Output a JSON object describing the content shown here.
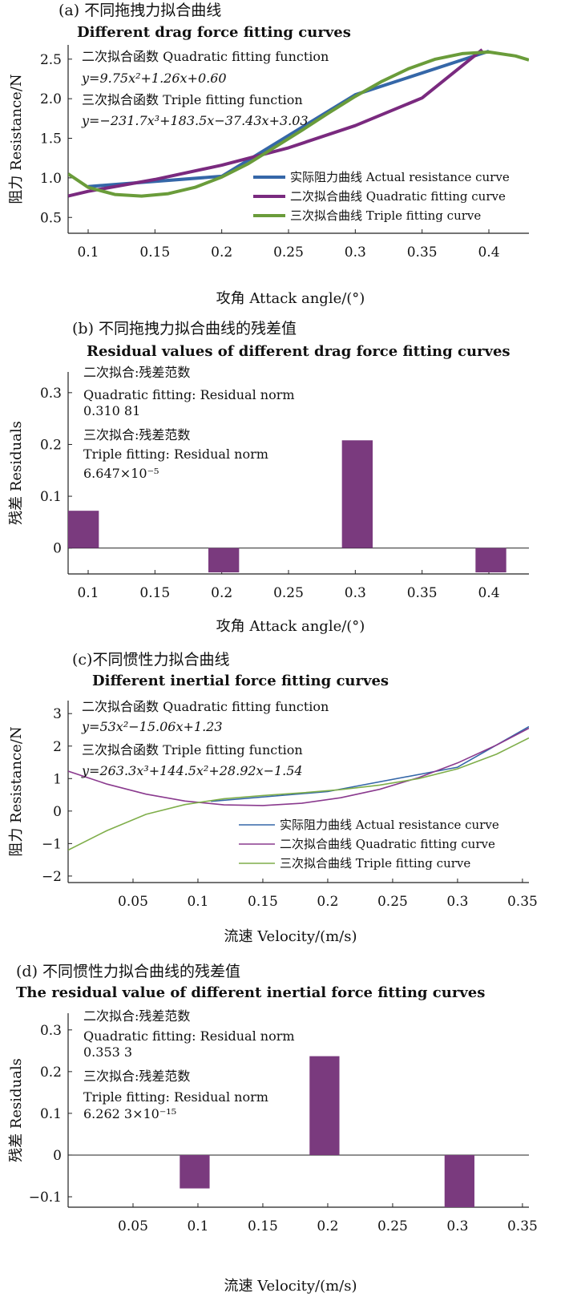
{
  "chart_data": [
    {
      "type": "line",
      "title": "(a) 不同拖拽力拟合曲线",
      "subtitle": "Different drag force fitting curves",
      "xlabel": "攻角 Attack angle/(°)",
      "ylabel": "阻力 Resistance/N",
      "xlim": [
        0.085,
        0.43
      ],
      "ylim": [
        0.3,
        2.68
      ],
      "xticks": [
        0.1,
        0.15,
        0.2,
        0.25,
        0.3,
        0.35,
        0.4
      ],
      "xtick_labels": [
        "0.1",
        "0.15",
        "0.2",
        "0.25",
        "0.3",
        "0.35",
        "0.4"
      ],
      "yticks": [
        0.5,
        1.0,
        1.5,
        2.0,
        2.5
      ],
      "ytick_labels": [
        "0.5",
        "1.0",
        "1.5",
        "2.0",
        "2.5"
      ],
      "annotations": [
        "二次拟合函数 Quadratic fitting function",
        "y=9.75x²+1.26x+0.60",
        "三次拟合函数 Triple fitting function",
        "y=−231.7x³+183.5x−37.43x+3.03"
      ],
      "legend": [
        "实际阻力曲线 Actual resistance curve",
        "二次拟合曲线 Quadratic fitting curve",
        "三次拟合曲线 Triple fitting curve"
      ],
      "legend_position": "right",
      "series": [
        {
          "name": "实际阻力曲线 Actual resistance curve",
          "color": "#3567a8",
          "width": 4,
          "x": [
            0.1,
            0.2,
            0.3,
            0.4
          ],
          "y": [
            0.89,
            1.02,
            2.05,
            2.6
          ]
        },
        {
          "name": "二次拟合曲线 Quadratic fitting curve",
          "color": "#7a2a7f",
          "width": 4,
          "x": [
            0.085,
            0.1,
            0.15,
            0.2,
            0.25,
            0.3,
            0.35,
            0.395
          ],
          "y": [
            0.77,
            0.83,
            0.98,
            1.16,
            1.38,
            1.66,
            2.01,
            2.62
          ]
        },
        {
          "name": "三次拟合曲线 Triple fitting curve",
          "color": "#6a9c3a",
          "width": 4,
          "x": [
            0.085,
            0.1,
            0.12,
            0.14,
            0.16,
            0.18,
            0.2,
            0.22,
            0.24,
            0.26,
            0.28,
            0.3,
            0.32,
            0.34,
            0.36,
            0.38,
            0.4,
            0.42,
            0.43
          ],
          "y": [
            1.05,
            0.88,
            0.79,
            0.77,
            0.8,
            0.88,
            1.01,
            1.18,
            1.39,
            1.6,
            1.82,
            2.03,
            2.22,
            2.38,
            2.5,
            2.57,
            2.59,
            2.54,
            2.49
          ]
        }
      ]
    },
    {
      "type": "bar",
      "title": "(b) 不同拖拽力拟合曲线的残差值",
      "subtitle": "Residual values of different drag force fitting curves",
      "xlabel": "攻角 Attack angle/(°)",
      "ylabel": "残差 Residuals",
      "xlim": [
        0.085,
        0.43
      ],
      "ylim": [
        -0.05,
        0.34
      ],
      "xticks": [
        0.1,
        0.15,
        0.2,
        0.25,
        0.3,
        0.35,
        0.4
      ],
      "xtick_labels": [
        "0.1",
        "0.15",
        "0.2",
        "0.25",
        "0.3",
        "0.35",
        "0.4"
      ],
      "yticks": [
        0,
        0.1,
        0.2,
        0.3
      ],
      "ytick_labels": [
        "0",
        "0.1",
        "0.2",
        "0.3"
      ],
      "annotations": [
        "二次拟合:残差范数",
        "Quadratic fitting: Residual norm",
        "0.310 81",
        "三次拟合:残差范数",
        "Triple fitting: Residual norm",
        "6.647×10⁻⁵"
      ],
      "bar_color": "#7a3a7e",
      "bar_width": 0.023,
      "x": [
        0.085,
        0.19,
        0.29,
        0.39
      ],
      "values": [
        0.072,
        -0.047,
        0.208,
        -0.047
      ]
    },
    {
      "type": "line",
      "title": "(c)不同惯性力拟合曲线",
      "subtitle": "Different inertial force fitting curves",
      "xlabel": "流速 Velocity/(m/s)",
      "ylabel": "阻力 Resistance/N",
      "xlim": [
        0.0,
        0.355
      ],
      "ylim": [
        -2.2,
        3.4
      ],
      "xticks": [
        0.05,
        0.1,
        0.15,
        0.2,
        0.25,
        0.3,
        0.35
      ],
      "xtick_labels": [
        "0.05",
        "0.1",
        "0.15",
        "0.2",
        "0.25",
        "0.3",
        "0.35"
      ],
      "yticks": [
        -2,
        -1,
        0,
        1,
        2,
        3
      ],
      "ytick_labels": [
        "−2",
        "−1",
        "0",
        "1",
        "2",
        "3"
      ],
      "annotations": [
        "二次拟合函数 Quadratic fitting function",
        "y=53x²−15.06x+1.23",
        "三次拟合函数 Triple fitting function",
        "y=263.3x³+144.5x²+28.92x−1.54"
      ],
      "legend": [
        "实际阻力曲线 Actual resistance curve",
        "二次拟合曲线 Quadratic fitting curve",
        "三次拟合曲线 Triple fitting curve"
      ],
      "legend_position": "bottom-right",
      "series": [
        {
          "name": "实际阻力曲线 Actual resistance curve",
          "color": "#3567a8",
          "width": 1.6,
          "x": [
            0.11,
            0.2,
            0.3,
            0.355
          ],
          "y": [
            0.3,
            0.6,
            1.35,
            2.6
          ]
        },
        {
          "name": "二次拟合曲线 Quadratic fitting curve",
          "color": "#8a3a8e",
          "width": 1.6,
          "x": [
            0.0,
            0.03,
            0.06,
            0.09,
            0.12,
            0.15,
            0.18,
            0.21,
            0.24,
            0.27,
            0.3,
            0.33,
            0.355
          ],
          "y": [
            1.23,
            0.83,
            0.52,
            0.31,
            0.19,
            0.17,
            0.24,
            0.41,
            0.67,
            1.03,
            1.48,
            2.03,
            2.55
          ]
        },
        {
          "name": "三次拟合曲线 Triple fitting curve",
          "color": "#7fae4a",
          "width": 1.6,
          "x": [
            0.0,
            0.03,
            0.06,
            0.09,
            0.12,
            0.15,
            0.18,
            0.21,
            0.24,
            0.27,
            0.3,
            0.33,
            0.355
          ],
          "y": [
            -1.2,
            -0.6,
            -0.1,
            0.2,
            0.38,
            0.48,
            0.56,
            0.66,
            0.8,
            1.0,
            1.3,
            1.75,
            2.25
          ]
        }
      ]
    },
    {
      "type": "bar",
      "title": "(d) 不同惯性力拟合曲线的残差值",
      "subtitle": "The residual value of different inertial force fitting curves",
      "xlabel": "流速 Velocity/(m/s)",
      "ylabel": "残差 Residuals",
      "xlim": [
        0.0,
        0.355
      ],
      "ylim": [
        -0.125,
        0.34
      ],
      "xticks": [
        0.05,
        0.1,
        0.15,
        0.2,
        0.25,
        0.3,
        0.35
      ],
      "xtick_labels": [
        "0.05",
        "0.1",
        "0.15",
        "0.2",
        "0.25",
        "0.3",
        "0.35"
      ],
      "yticks": [
        -0.1,
        0,
        0.1,
        0.2,
        0.3
      ],
      "ytick_labels": [
        "−0.1",
        "0",
        "0.1",
        "0.2",
        "0.3"
      ],
      "annotations": [
        "二次拟合:残差范数",
        "Quadratic fitting: Residual norm",
        "0.353 3",
        "三次拟合:残差范数",
        "Triple fitting: Residual norm",
        "6.262 3×10⁻¹⁵"
      ],
      "bar_color": "#7a3a7e",
      "bar_width": 0.023,
      "x": [
        0.086,
        0.186,
        0.29
      ],
      "values": [
        -0.08,
        0.237,
        -0.125
      ]
    }
  ]
}
